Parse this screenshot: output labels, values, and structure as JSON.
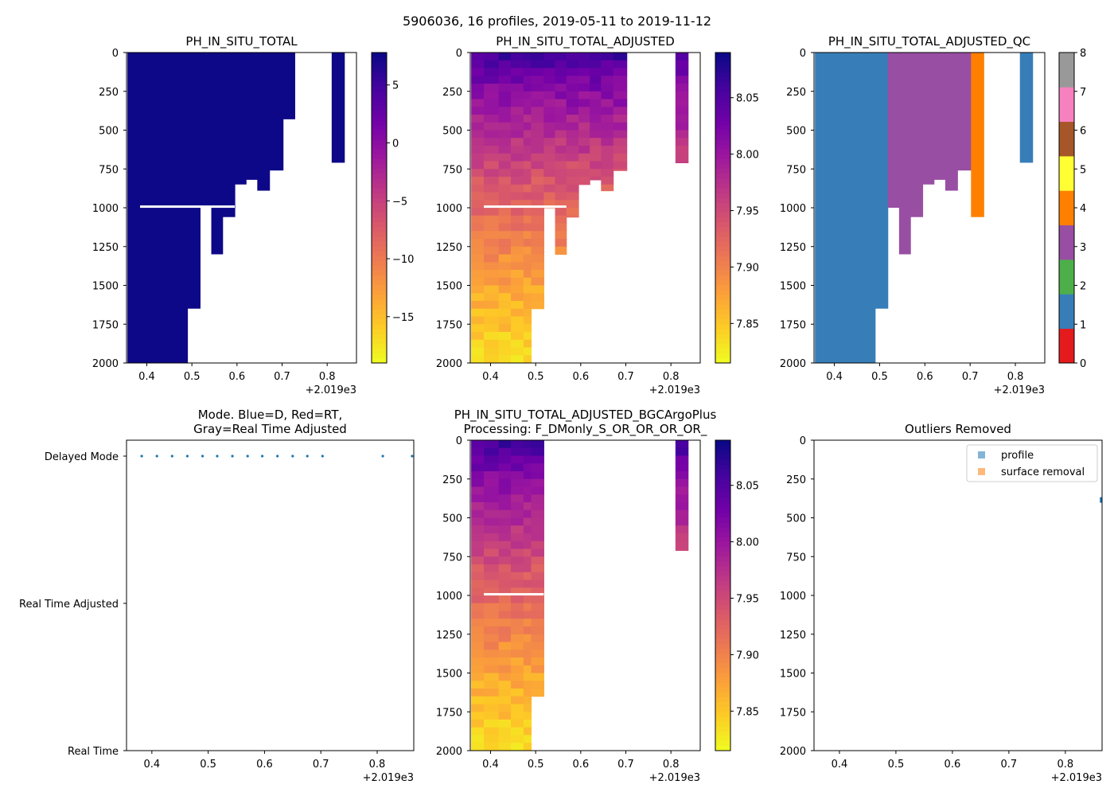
{
  "figure_title": "5906036, 16 profiles, 2019-05-11 to 2019-11-12",
  "palettes": {
    "plasma": [
      "#0d0887",
      "#46039f",
      "#7201a8",
      "#9c179e",
      "#bd3786",
      "#d8576b",
      "#ed7953",
      "#fb9f3a",
      "#fdca26",
      "#f0f921"
    ],
    "qc": [
      "#e41a1c",
      "#377eb8",
      "#4daf4a",
      "#984ea3",
      "#ff7f00",
      "#ffff33",
      "#a65628",
      "#f781bf",
      "#999999"
    ],
    "mode_dot": "#1f77b4",
    "outlier_profile": "#1f77b4",
    "outlier_surface": "#ff7f0e"
  },
  "chart_data": [
    {
      "id": "p1",
      "type": "heatmap",
      "title": "PH_IN_SITU_TOTAL",
      "xlim": [
        0.355,
        0.865
      ],
      "xticks": [
        0.4,
        0.5,
        0.6,
        0.7,
        0.8
      ],
      "xtick_labels": [
        "0.4",
        "0.5",
        "0.6",
        "0.7",
        "0.8"
      ],
      "x_offset_label": "+2.019e3",
      "ylim": [
        2000,
        0
      ],
      "yticks": [
        0,
        250,
        500,
        750,
        1000,
        1250,
        1500,
        1750,
        2000
      ],
      "ytick_labels": [
        "0",
        "250",
        "500",
        "750",
        "1000",
        "1250",
        "1500",
        "1750",
        "2000"
      ],
      "colorbar": {
        "cmap": "plasma",
        "range": [
          -19,
          7.8
        ],
        "ticks": [
          5,
          0,
          -5,
          -10,
          -15
        ],
        "tick_labels": [
          "5",
          "0",
          "−5",
          "−10",
          "−15"
        ]
      },
      "profiles": [
        {
          "x0": 0.357,
          "x1": 0.385,
          "max_depth": 2000
        },
        {
          "x0": 0.385,
          "x1": 0.418,
          "max_depth": 2000
        },
        {
          "x0": 0.418,
          "x1": 0.445,
          "max_depth": 2000
        },
        {
          "x0": 0.445,
          "x1": 0.473,
          "max_depth": 2000
        },
        {
          "x0": 0.473,
          "x1": 0.49,
          "max_depth": 2000
        },
        {
          "x0": 0.49,
          "x1": 0.518,
          "max_depth": 1650
        },
        {
          "x0": 0.518,
          "x1": 0.543,
          "max_depth": 1000
        },
        {
          "x0": 0.543,
          "x1": 0.568,
          "max_depth": 1300
        },
        {
          "x0": 0.568,
          "x1": 0.595,
          "max_depth": 1060
        },
        {
          "x0": 0.595,
          "x1": 0.62,
          "max_depth": 850
        },
        {
          "x0": 0.62,
          "x1": 0.645,
          "max_depth": 820
        },
        {
          "x0": 0.645,
          "x1": 0.672,
          "max_depth": 890
        },
        {
          "x0": 0.672,
          "x1": 0.702,
          "max_depth": 760
        },
        {
          "x0": 0.702,
          "x1": 0.728,
          "max_depth": 430
        },
        {
          "x0": 0.81,
          "x1": 0.838,
          "max_depth": 710
        }
      ]
    },
    {
      "id": "p2",
      "type": "heatmap",
      "title": "PH_IN_SITU_TOTAL_ADJUSTED",
      "xlim": [
        0.355,
        0.865
      ],
      "xticks": [
        0.4,
        0.5,
        0.6,
        0.7,
        0.8
      ],
      "xtick_labels": [
        "0.4",
        "0.5",
        "0.6",
        "0.7",
        "0.8"
      ],
      "x_offset_label": "+2.019e3",
      "ylim": [
        2000,
        0
      ],
      "yticks": [
        0,
        250,
        500,
        750,
        1000,
        1250,
        1500,
        1750,
        2000
      ],
      "ytick_labels": [
        "0",
        "250",
        "500",
        "750",
        "1000",
        "1250",
        "1500",
        "1750",
        "2000"
      ],
      "colorbar": {
        "cmap": "plasma",
        "range": [
          7.815,
          8.09
        ],
        "ticks": [
          8.05,
          8.0,
          7.95,
          7.9,
          7.85
        ],
        "tick_labels": [
          "8.05",
          "8.00",
          "7.95",
          "7.90",
          "7.85"
        ]
      },
      "profiles": [
        {
          "x0": 0.357,
          "x1": 0.385,
          "max_depth": 2000
        },
        {
          "x0": 0.385,
          "x1": 0.418,
          "max_depth": 2000
        },
        {
          "x0": 0.418,
          "x1": 0.445,
          "max_depth": 2000
        },
        {
          "x0": 0.445,
          "x1": 0.473,
          "max_depth": 2000
        },
        {
          "x0": 0.473,
          "x1": 0.49,
          "max_depth": 2000
        },
        {
          "x0": 0.49,
          "x1": 0.518,
          "max_depth": 1650
        },
        {
          "x0": 0.518,
          "x1": 0.543,
          "max_depth": 1000
        },
        {
          "x0": 0.543,
          "x1": 0.568,
          "max_depth": 1300
        },
        {
          "x0": 0.568,
          "x1": 0.595,
          "max_depth": 1060
        },
        {
          "x0": 0.595,
          "x1": 0.62,
          "max_depth": 850
        },
        {
          "x0": 0.62,
          "x1": 0.645,
          "max_depth": 820
        },
        {
          "x0": 0.645,
          "x1": 0.672,
          "max_depth": 890
        },
        {
          "x0": 0.672,
          "x1": 0.702,
          "max_depth": 760
        },
        {
          "x0": 0.81,
          "x1": 0.838,
          "max_depth": 710
        }
      ],
      "value_profile": {
        "surface": 8.07,
        "bottom": 7.83
      }
    },
    {
      "id": "p3",
      "type": "heatmap",
      "title": "PH_IN_SITU_TOTAL_ADJUSTED_QC",
      "xlim": [
        0.355,
        0.865
      ],
      "xticks": [
        0.4,
        0.5,
        0.6,
        0.7,
        0.8
      ],
      "xtick_labels": [
        "0.4",
        "0.5",
        "0.6",
        "0.7",
        "0.8"
      ],
      "x_offset_label": "+2.019e3",
      "ylim": [
        2000,
        0
      ],
      "yticks": [
        0,
        250,
        500,
        750,
        1000,
        1250,
        1500,
        1750,
        2000
      ],
      "ytick_labels": [
        "0",
        "250",
        "500",
        "750",
        "1000",
        "1250",
        "1500",
        "1750",
        "2000"
      ],
      "colorbar": {
        "cmap": "qc",
        "range": [
          0,
          8
        ],
        "ticks": [
          8,
          7,
          6,
          5,
          4,
          3,
          2,
          1,
          0
        ],
        "tick_labels": [
          "8",
          "7",
          "6",
          "5",
          "4",
          "3",
          "2",
          "1",
          "0"
        ]
      },
      "profiles": [
        {
          "x0": 0.357,
          "x1": 0.49,
          "max_depth": 2000,
          "qc": 1
        },
        {
          "x0": 0.49,
          "x1": 0.518,
          "max_depth": 1650,
          "qc": 1
        },
        {
          "x0": 0.518,
          "x1": 0.543,
          "max_depth": 1000,
          "qc": 3
        },
        {
          "x0": 0.543,
          "x1": 0.568,
          "max_depth": 1300,
          "qc": 3
        },
        {
          "x0": 0.568,
          "x1": 0.595,
          "max_depth": 1060,
          "qc": 3
        },
        {
          "x0": 0.595,
          "x1": 0.62,
          "max_depth": 850,
          "qc": 3
        },
        {
          "x0": 0.62,
          "x1": 0.645,
          "max_depth": 820,
          "qc": 3
        },
        {
          "x0": 0.645,
          "x1": 0.672,
          "max_depth": 890,
          "qc": 3
        },
        {
          "x0": 0.672,
          "x1": 0.702,
          "max_depth": 760,
          "qc": 3
        },
        {
          "x0": 0.702,
          "x1": 0.73,
          "max_depth": 1060,
          "qc": 4
        },
        {
          "x0": 0.81,
          "x1": 0.838,
          "max_depth": 710,
          "qc": 1
        }
      ]
    },
    {
      "id": "p4",
      "type": "scatter",
      "title": "Mode. Blue=D, Red=RT,\nGray=Real Time Adjusted",
      "xlim": [
        0.355,
        0.865
      ],
      "xticks": [
        0.4,
        0.5,
        0.6,
        0.7,
        0.8
      ],
      "xtick_labels": [
        "0.4",
        "0.5",
        "0.6",
        "0.7",
        "0.8"
      ],
      "x_offset_label": "+2.019e3",
      "ylim": [
        0,
        2
      ],
      "yticks": [
        2,
        1,
        0
      ],
      "ytick_labels": [
        "Delayed Mode",
        "Real Time Adjusted",
        "Real Time"
      ],
      "x": [
        0.382,
        0.409,
        0.436,
        0.463,
        0.49,
        0.516,
        0.543,
        0.57,
        0.596,
        0.623,
        0.65,
        0.676,
        0.703,
        0.81,
        0.862
      ],
      "y": [
        2,
        2,
        2,
        2,
        2,
        2,
        2,
        2,
        2,
        2,
        2,
        2,
        2,
        2,
        2
      ]
    },
    {
      "id": "p5",
      "type": "heatmap",
      "title": "PH_IN_SITU_TOTAL_ADJUSTED_BGCArgoPlus\nProcessing: F_DMonly_S_OR_OR_OR_OR_",
      "xlim": [
        0.355,
        0.865
      ],
      "xticks": [
        0.4,
        0.5,
        0.6,
        0.7,
        0.8
      ],
      "xtick_labels": [
        "0.4",
        "0.5",
        "0.6",
        "0.7",
        "0.8"
      ],
      "x_offset_label": "+2.019e3",
      "ylim": [
        2000,
        0
      ],
      "yticks": [
        0,
        250,
        500,
        750,
        1000,
        1250,
        1500,
        1750,
        2000
      ],
      "ytick_labels": [
        "0",
        "250",
        "500",
        "750",
        "1000",
        "1250",
        "1500",
        "1750",
        "2000"
      ],
      "colorbar": {
        "cmap": "plasma",
        "range": [
          7.815,
          8.09
        ],
        "ticks": [
          8.05,
          8.0,
          7.95,
          7.9,
          7.85
        ],
        "tick_labels": [
          "8.05",
          "8.00",
          "7.95",
          "7.90",
          "7.85"
        ]
      },
      "profiles": [
        {
          "x0": 0.357,
          "x1": 0.385,
          "max_depth": 2000
        },
        {
          "x0": 0.385,
          "x1": 0.418,
          "max_depth": 2000
        },
        {
          "x0": 0.418,
          "x1": 0.445,
          "max_depth": 2000
        },
        {
          "x0": 0.445,
          "x1": 0.473,
          "max_depth": 2000
        },
        {
          "x0": 0.473,
          "x1": 0.49,
          "max_depth": 2000
        },
        {
          "x0": 0.49,
          "x1": 0.518,
          "max_depth": 1650
        },
        {
          "x0": 0.81,
          "x1": 0.838,
          "max_depth": 710
        }
      ],
      "value_profile": {
        "surface": 8.07,
        "bottom": 7.83
      }
    },
    {
      "id": "p6",
      "type": "scatter",
      "title": "Outliers Removed",
      "xlim": [
        0.355,
        0.865
      ],
      "xticks": [
        0.4,
        0.5,
        0.6,
        0.7,
        0.8
      ],
      "xtick_labels": [
        "0.4",
        "0.5",
        "0.6",
        "0.7",
        "0.8"
      ],
      "x_offset_label": "+2.019e3",
      "ylim": [
        2000,
        0
      ],
      "yticks": [
        0,
        250,
        500,
        750,
        1000,
        1250,
        1500,
        1750,
        2000
      ],
      "ytick_labels": [
        "0",
        "250",
        "500",
        "750",
        "1000",
        "1250",
        "1500",
        "1750",
        "2000"
      ],
      "legend": {
        "position": "top-right",
        "entries": [
          "profile",
          "surface removal"
        ]
      },
      "series": [
        {
          "name": "profile",
          "x": [
            0.866
          ],
          "y": [
            385
          ]
        },
        {
          "name": "surface removal",
          "x": [],
          "y": []
        }
      ]
    }
  ]
}
